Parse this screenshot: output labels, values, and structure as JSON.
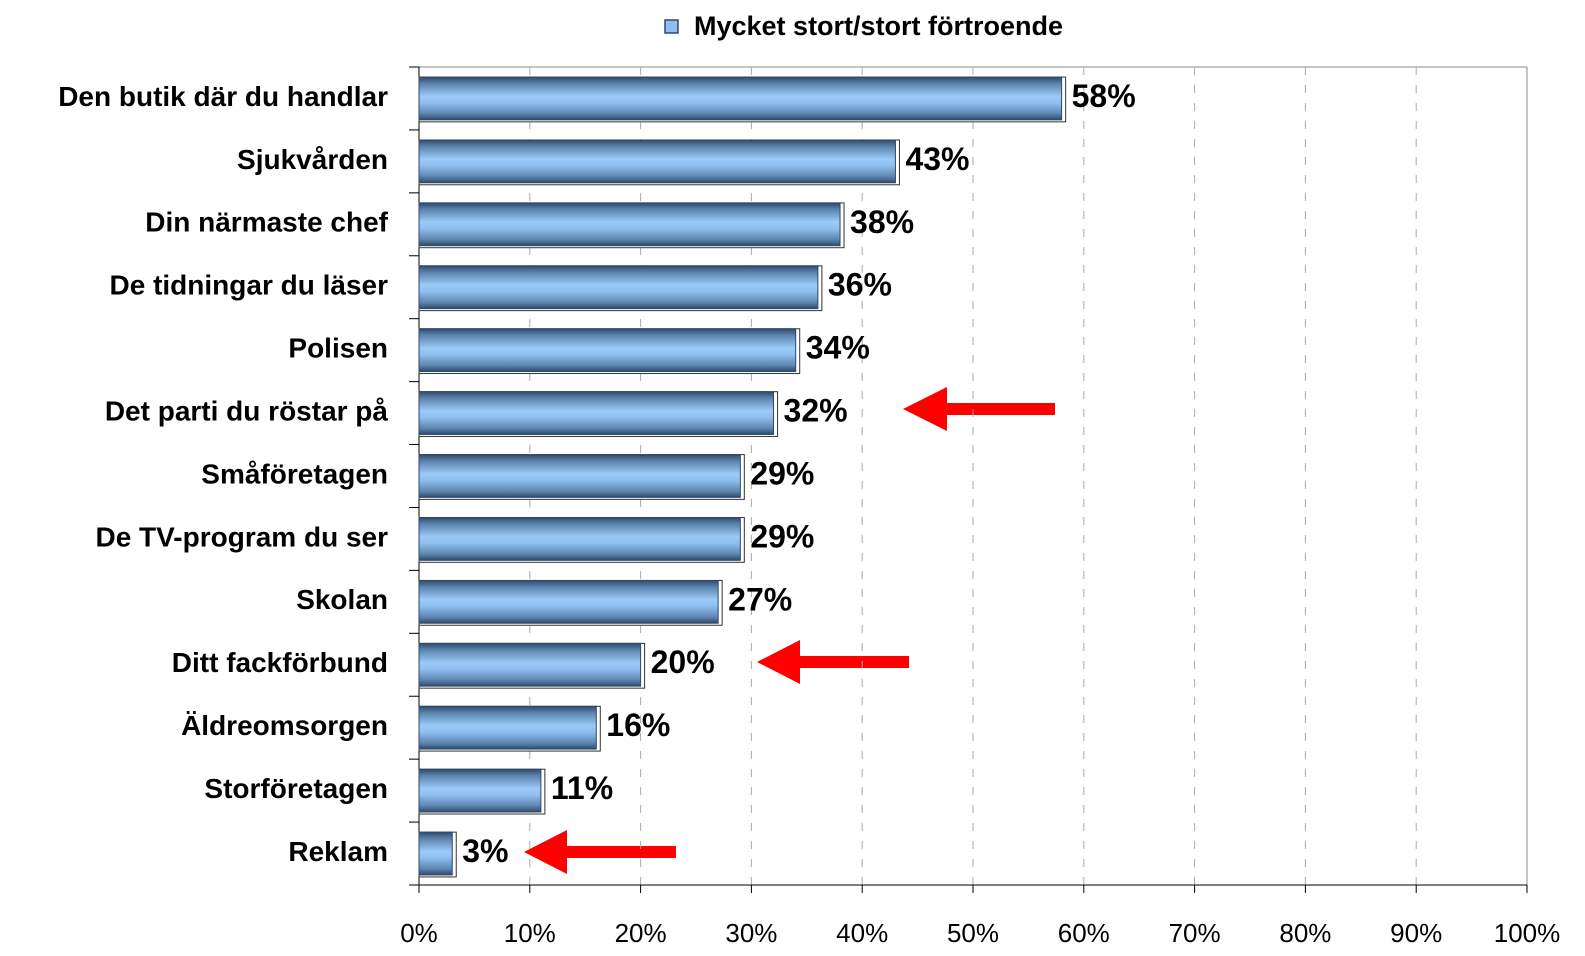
{
  "chart_data": {
    "type": "barh",
    "categories": [
      "Den butik där du handlar",
      "Sjukvården",
      "Din närmaste chef",
      "De tidningar du läser",
      "Polisen",
      "Det parti du röstar på",
      "Småföretagen",
      "De TV-program du ser",
      "Skolan",
      "Ditt fackförbund",
      "Äldreomsorgen",
      "Storföretagen",
      "Reklam"
    ],
    "series": [
      {
        "name": "Mycket stort/stort förtroende",
        "color": "#8fbff0",
        "values": [
          58,
          43,
          38,
          36,
          34,
          32,
          29,
          29,
          27,
          20,
          16,
          11,
          3
        ],
        "value_labels": [
          "58%",
          "43%",
          "38%",
          "36%",
          "34%",
          "32%",
          "29%",
          "29%",
          "27%",
          "20%",
          "16%",
          "11%",
          "3%"
        ]
      }
    ],
    "xlim": [
      0,
      100
    ],
    "xticks": [
      {
        "value": 0,
        "label": "0%"
      },
      {
        "value": 10,
        "label": "10%"
      },
      {
        "value": 20,
        "label": "20%"
      },
      {
        "value": 30,
        "label": "30%"
      },
      {
        "value": 40,
        "label": "40%"
      },
      {
        "value": 50,
        "label": "50%"
      },
      {
        "value": 60,
        "label": "60%"
      },
      {
        "value": 70,
        "label": "70%"
      },
      {
        "value": 80,
        "label": "80%"
      },
      {
        "value": 90,
        "label": "90%"
      },
      {
        "value": 100,
        "label": "100%"
      }
    ],
    "grid": true,
    "legend": "top"
  }
}
